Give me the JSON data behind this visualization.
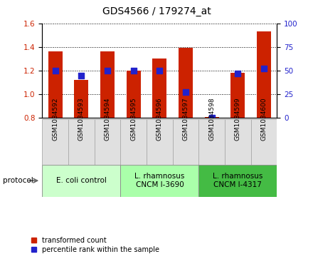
{
  "title": "GDS4566 / 179274_at",
  "samples": [
    "GSM1034592",
    "GSM1034593",
    "GSM1034594",
    "GSM1034595",
    "GSM1034596",
    "GSM1034597",
    "GSM1034598",
    "GSM1034599",
    "GSM1034600"
  ],
  "transformed_counts": [
    1.36,
    1.12,
    1.36,
    1.2,
    1.3,
    1.39,
    0.81,
    1.18,
    1.53
  ],
  "percentile_ranks": [
    50,
    45,
    50,
    50,
    50,
    27,
    0,
    47,
    52
  ],
  "bar_bottom": 0.8,
  "bar_color": "#cc2200",
  "dot_color": "#2222cc",
  "ylim_left": [
    0.8,
    1.6
  ],
  "ylim_right": [
    0,
    100
  ],
  "yticks_left": [
    0.8,
    1.0,
    1.2,
    1.4,
    1.6
  ],
  "yticks_right": [
    0,
    25,
    50,
    75,
    100
  ],
  "ylabel_left_color": "#cc2200",
  "ylabel_right_color": "#2222cc",
  "group_colors": [
    "#ccffcc",
    "#aaffaa",
    "#44bb44"
  ],
  "groups": [
    {
      "label": "E. coli control",
      "start": 0,
      "end": 3
    },
    {
      "label": "L. rhamnosus\nCNCM I-3690",
      "start": 3,
      "end": 6
    },
    {
      "label": "L. rhamnosus\nCNCM I-4317",
      "start": 6,
      "end": 9
    }
  ],
  "legend_items": [
    {
      "label": "transformed count",
      "color": "#cc2200"
    },
    {
      "label": "percentile rank within the sample",
      "color": "#2222cc"
    }
  ],
  "bar_width": 0.55,
  "dot_size": 30,
  "title_fontsize": 10,
  "tick_fontsize": 7.5,
  "group_fontsize": 7.5,
  "legend_fontsize": 7
}
